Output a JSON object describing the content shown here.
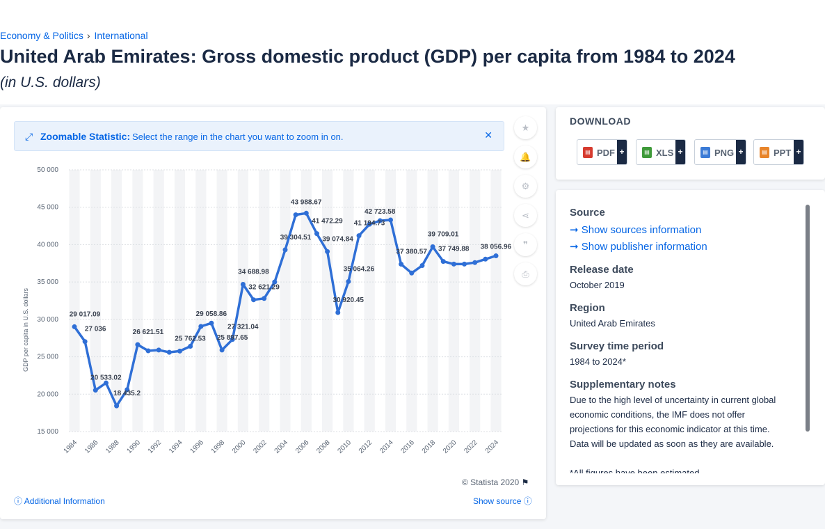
{
  "breadcrumb": [
    "Economy & Politics",
    "International"
  ],
  "title": "United Arab Emirates: Gross domestic product (GDP) per capita from 1984 to 2024",
  "subtitle": "(in U.S. dollars)",
  "zoom": {
    "title": "Zoomable Statistic:",
    "text": "Select the range in the chart you want to zoom in on."
  },
  "side_buttons": [
    "star-icon",
    "bell-icon",
    "gear-icon",
    "share-icon",
    "quote-icon",
    "print-icon"
  ],
  "footer": {
    "copyright": "© Statista 2020",
    "additional": "Additional Information",
    "show_source": "Show source"
  },
  "download": {
    "title": "DOWNLOAD",
    "buttons": [
      {
        "label": "PDF",
        "color": "#d63b2f"
      },
      {
        "label": "XLS",
        "color": "#3f9a3a"
      },
      {
        "label": "PNG",
        "color": "#3b7bd6"
      },
      {
        "label": "PPT",
        "color": "#e8852b"
      }
    ],
    "plus": "+"
  },
  "details": {
    "source_label": "Source",
    "sources_link": "Show sources information",
    "publisher_link": "Show publisher information",
    "release_label": "Release date",
    "release_value": "October 2019",
    "region_label": "Region",
    "region_value": "United Arab Emirates",
    "period_label": "Survey time period",
    "period_value": "1984 to 2024*",
    "notes_label": "Supplementary notes",
    "notes_lines": [
      "Due to the high level of uncertainty in current global",
      "economic conditions, the IMF does not offer",
      "projections for this economic indicator at this time.",
      "Data will be updated as soon as they are available."
    ],
    "notes_extra": "*All figures have been estimated."
  },
  "chart_data": {
    "type": "line",
    "title": "",
    "xlabel": "",
    "ylabel": "GDP per capita in U.S. dollars",
    "ylim": [
      15000,
      50000
    ],
    "yticks": [
      "15 000",
      "20 000",
      "25 000",
      "30 000",
      "35 000",
      "40 000",
      "45 000",
      "50 000"
    ],
    "xticks": [
      "1984",
      "1986",
      "1988",
      "1990",
      "1992",
      "1994",
      "1996",
      "1998",
      "2000",
      "2002",
      "2004",
      "2006",
      "2008",
      "2010",
      "2012",
      "2014",
      "2016",
      "2018",
      "2020",
      "2022",
      "2024"
    ],
    "grid": true,
    "line_color": "#2f6fd6",
    "x": [
      1984,
      1985,
      1986,
      1987,
      1988,
      1989,
      1990,
      1991,
      1992,
      1993,
      1994,
      1995,
      1996,
      1997,
      1998,
      1999,
      2000,
      2001,
      2002,
      2003,
      2004,
      2005,
      2006,
      2007,
      2008,
      2009,
      2010,
      2011,
      2012,
      2013,
      2014,
      2015,
      2016,
      2017,
      2018,
      2019,
      2020,
      2021,
      2022,
      2023,
      2024
    ],
    "values": [
      29017.09,
      27036,
      20533.02,
      21500,
      18435.2,
      20600,
      26621.51,
      25800,
      25900,
      25600,
      25762.53,
      26400,
      29058.86,
      29500,
      25897.65,
      27321.04,
      34688.98,
      32621.29,
      32800,
      35000,
      39304.51,
      43988.67,
      44200,
      41472.29,
      39074.84,
      30920.45,
      35064.26,
      41194.73,
      42723.58,
      43200,
      43300,
      37380.57,
      36200,
      37200,
      39709.01,
      37749.88,
      37400,
      37400,
      37600,
      38056.96,
      38500
    ],
    "data_labels": [
      {
        "x": 1984,
        "text": "29 017.09"
      },
      {
        "x": 1985,
        "text": "27 036"
      },
      {
        "x": 1986,
        "text": "20 533.02"
      },
      {
        "x": 1988,
        "text": "18 435.2"
      },
      {
        "x": 1990,
        "text": "26 621.51"
      },
      {
        "x": 1994,
        "text": "25 762.53"
      },
      {
        "x": 1996,
        "text": "29 058.86"
      },
      {
        "x": 1998,
        "text": "25 897.65"
      },
      {
        "x": 1999,
        "text": "27 321.04"
      },
      {
        "x": 2000,
        "text": "34 688.98"
      },
      {
        "x": 2001,
        "text": "32 621.29"
      },
      {
        "x": 2004,
        "text": "39 304.51"
      },
      {
        "x": 2005,
        "text": "43 988.67"
      },
      {
        "x": 2007,
        "text": "41 472.29"
      },
      {
        "x": 2008,
        "text": "39 074.84"
      },
      {
        "x": 2009,
        "text": "30 920.45"
      },
      {
        "x": 2010,
        "text": "35 064.26"
      },
      {
        "x": 2011,
        "text": "41 194.73"
      },
      {
        "x": 2012,
        "text": "42 723.58"
      },
      {
        "x": 2015,
        "text": "37 380.57"
      },
      {
        "x": 2018,
        "text": "39 709.01"
      },
      {
        "x": 2019,
        "text": "37 749.88"
      },
      {
        "x": 2023,
        "text": "38 056.96"
      }
    ]
  }
}
